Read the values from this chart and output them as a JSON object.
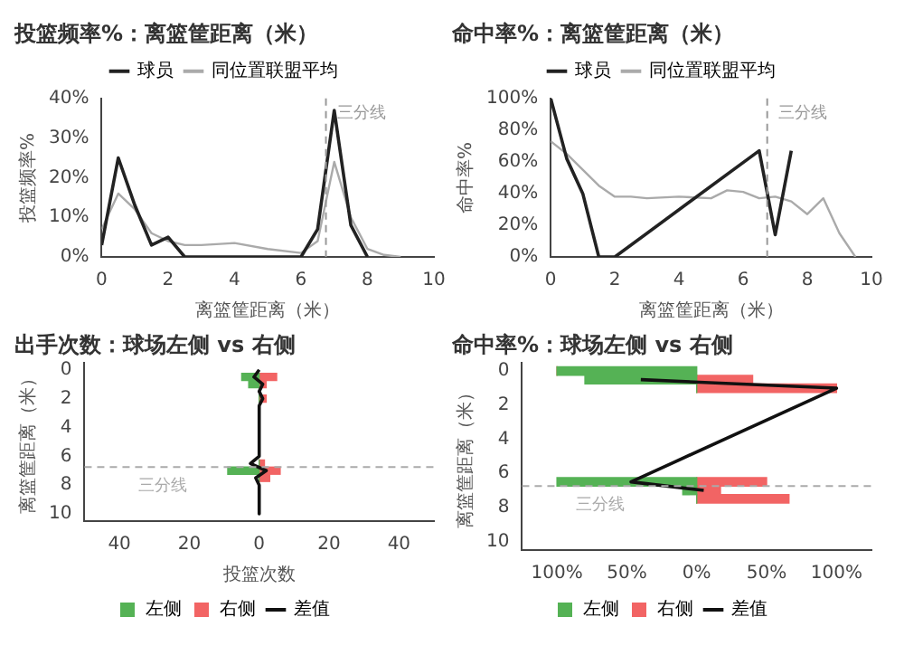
{
  "chart_data": [
    {
      "type": "line",
      "title": "投篮频率%：离篮筐距离（米）",
      "xlabel": "离篮筐距离（米）",
      "ylabel": "投篮频率%",
      "xlim": [
        0,
        10
      ],
      "xticks": [
        0,
        2,
        4,
        6,
        8,
        10
      ],
      "ylim": [
        0,
        40
      ],
      "yticks": [
        {
          "value": 0,
          "label": "0%"
        },
        {
          "value": 10,
          "label": "10%"
        },
        {
          "value": 20,
          "label": "20%"
        },
        {
          "value": 30,
          "label": "30%"
        },
        {
          "value": 40,
          "label": "40%"
        }
      ],
      "legend": "top",
      "grid": false,
      "marker": "none",
      "ref_lines": [
        {
          "axis": "x",
          "value": 6.75,
          "label": "三分线",
          "color": "#999999",
          "line_style": "dashed"
        }
      ],
      "series": [
        {
          "name": "球员",
          "color": "#222222",
          "x": [
            0,
            0.5,
            1,
            1.5,
            2,
            2.5,
            6,
            6.5,
            7,
            7.5,
            8
          ],
          "values": [
            3,
            25,
            13,
            3,
            5,
            0,
            0,
            7,
            37,
            8,
            0
          ]
        },
        {
          "name": "同位置联盟平均",
          "color": "#aaaaaa",
          "x": [
            0,
            0.5,
            1,
            1.5,
            2,
            2.5,
            3,
            4,
            5,
            6,
            6.5,
            7,
            7.5,
            8,
            8.5,
            9
          ],
          "values": [
            7,
            16,
            12,
            6,
            4,
            3,
            3,
            3.5,
            2,
            1,
            4,
            24,
            10,
            2,
            0.5,
            0
          ]
        }
      ]
    },
    {
      "type": "line",
      "title": "命中率%：离篮筐距离（米）",
      "xlabel": "离篮筐距离（米）",
      "ylabel": "命中率%",
      "xlim": [
        0,
        10
      ],
      "xticks": [
        0,
        2,
        4,
        6,
        8,
        10
      ],
      "ylim": [
        0,
        100
      ],
      "yticks": [
        {
          "value": 0,
          "label": "0%"
        },
        {
          "value": 20,
          "label": "20%"
        },
        {
          "value": 40,
          "label": "40%"
        },
        {
          "value": 60,
          "label": "60%"
        },
        {
          "value": 80,
          "label": "80%"
        },
        {
          "value": 100,
          "label": "100%"
        }
      ],
      "legend": "top",
      "grid": false,
      "marker": "none",
      "ref_lines": [
        {
          "axis": "x",
          "value": 6.75,
          "label": "三分线",
          "color": "#999999",
          "line_style": "dashed"
        }
      ],
      "series": [
        {
          "name": "球员",
          "color": "#222222",
          "x": [
            0,
            0.5,
            1,
            1.5,
            2,
            6.5,
            7,
            7.5
          ],
          "values": [
            100,
            62,
            40,
            0,
            0,
            67,
            14,
            67
          ]
        },
        {
          "name": "同位置联盟平均",
          "color": "#aaaaaa",
          "x": [
            0,
            0.5,
            1,
            1.5,
            2,
            2.5,
            3,
            4,
            5,
            5.5,
            6,
            6.5,
            7,
            7.5,
            8,
            8.5,
            9,
            9.5
          ],
          "values": [
            73,
            65,
            55,
            45,
            38,
            38,
            37,
            38,
            37,
            42,
            41,
            37,
            38,
            35,
            27,
            37,
            15,
            0
          ]
        }
      ]
    },
    {
      "type": "bar",
      "orientation": "horizontal",
      "stacked": true,
      "title": "出手次数：球场左侧 vs 右侧",
      "xlabel": "投篮次数",
      "ylabel": "离篮筐距离（米）",
      "xlim": [
        -50,
        50
      ],
      "xticks": [
        {
          "value": -40,
          "label": "40"
        },
        {
          "value": -20,
          "label": "20"
        },
        {
          "value": 0,
          "label": "0"
        },
        {
          "value": 20,
          "label": "20"
        },
        {
          "value": 40,
          "label": "40"
        }
      ],
      "ylim": [
        10.5,
        -0.5
      ],
      "yticks": [
        0,
        2,
        4,
        6,
        8,
        10
      ],
      "legend": "bottom",
      "grid": false,
      "ref_lines": [
        {
          "axis": "y",
          "value": 6.75,
          "label": "三分线",
          "color": "#aaaaaa",
          "line_style": "dashed"
        }
      ],
      "series": [
        {
          "name": "左侧",
          "color": "#55b255",
          "x": [
            0.5,
            1,
            2,
            6.5,
            7,
            7.5
          ],
          "values": [
            -5,
            -3,
            0,
            0,
            -9,
            0
          ]
        },
        {
          "name": "右侧",
          "color": "#f26464",
          "x": [
            0.5,
            1,
            2,
            6.5,
            7,
            7.5
          ],
          "values": [
            5,
            2,
            2,
            1.5,
            6,
            3
          ]
        },
        {
          "name": "差值",
          "type": "line",
          "color": "#111111",
          "x": [
            0,
            0.5,
            1,
            1.5,
            2,
            2.5,
            3,
            6,
            6.5,
            7,
            7.5,
            8,
            10
          ],
          "values": [
            0,
            -1.5,
            1,
            0,
            1,
            0,
            0,
            0,
            -2.5,
            2,
            -1,
            0,
            0
          ]
        }
      ]
    },
    {
      "type": "bar",
      "orientation": "horizontal",
      "stacked": true,
      "title": "命中率%：球场左侧 vs 右侧",
      "ylabel": "离篮筐距离（米）",
      "xlim": [
        -125,
        125
      ],
      "xticks": [
        {
          "value": -100,
          "label": "100%"
        },
        {
          "value": -50,
          "label": "50%"
        },
        {
          "value": 0,
          "label": "0%"
        },
        {
          "value": 50,
          "label": "50%"
        },
        {
          "value": 100,
          "label": "100%"
        }
      ],
      "ylim": [
        10.5,
        -0.5
      ],
      "yticks": [
        0,
        2,
        4,
        6,
        8,
        10
      ],
      "legend": "bottom",
      "grid": false,
      "ref_lines": [
        {
          "axis": "y",
          "value": 6.75,
          "label": "三分线",
          "color": "#aaaaaa",
          "line_style": "dashed"
        }
      ],
      "series": [
        {
          "name": "左侧",
          "color": "#55b255",
          "x": [
            0,
            0.5,
            1,
            6.5,
            7,
            7.5
          ],
          "values": [
            -100,
            -80,
            0,
            -100,
            -10,
            0
          ]
        },
        {
          "name": "右侧",
          "color": "#f26464",
          "x": [
            0,
            0.5,
            1,
            6.5,
            7,
            7.5
          ],
          "values": [
            0,
            40,
            100,
            50,
            17,
            66
          ]
        },
        {
          "name": "差值",
          "type": "line",
          "color": "#111111",
          "x": [
            0.5,
            1,
            6.5,
            7
          ],
          "values": [
            -40,
            100,
            -47,
            5
          ]
        }
      ]
    }
  ]
}
